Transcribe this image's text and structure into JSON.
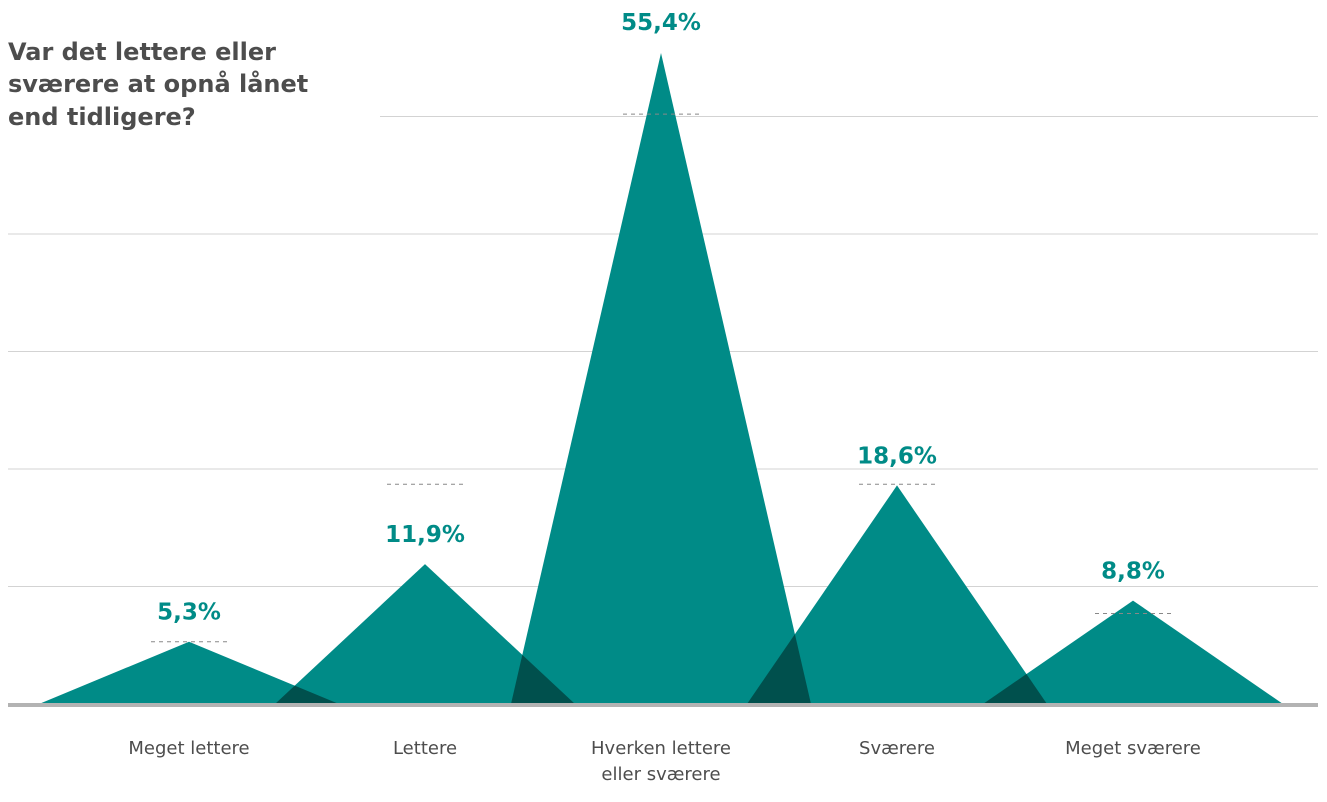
{
  "chart_data": {
    "type": "area",
    "title": "Var det lettere eller\nsværere at opnå lånet\nend tidligere?",
    "categories": [
      "Meget lettere",
      "Lettere",
      "Hverken lettere\neller sværere",
      "Sværere",
      "Meget sværere"
    ],
    "values": [
      5.3,
      11.9,
      55.4,
      18.6,
      8.8
    ],
    "value_labels": [
      "5,3%",
      "11,9%",
      "55,4%",
      "18,6%",
      "8,8%"
    ],
    "previous_values": [
      5.3,
      18.7,
      50.2,
      18.7,
      7.7
    ],
    "ylim": [
      0,
      55
    ],
    "grid": true,
    "legend": "none",
    "colors": {
      "fill": "#008b87",
      "overlap": "#00504d",
      "label": "#008b87",
      "axis": "#b3b3b3",
      "grid": "#d3d3d3",
      "category_text": "#4d4d4d",
      "previous_marker": "#888888"
    }
  }
}
